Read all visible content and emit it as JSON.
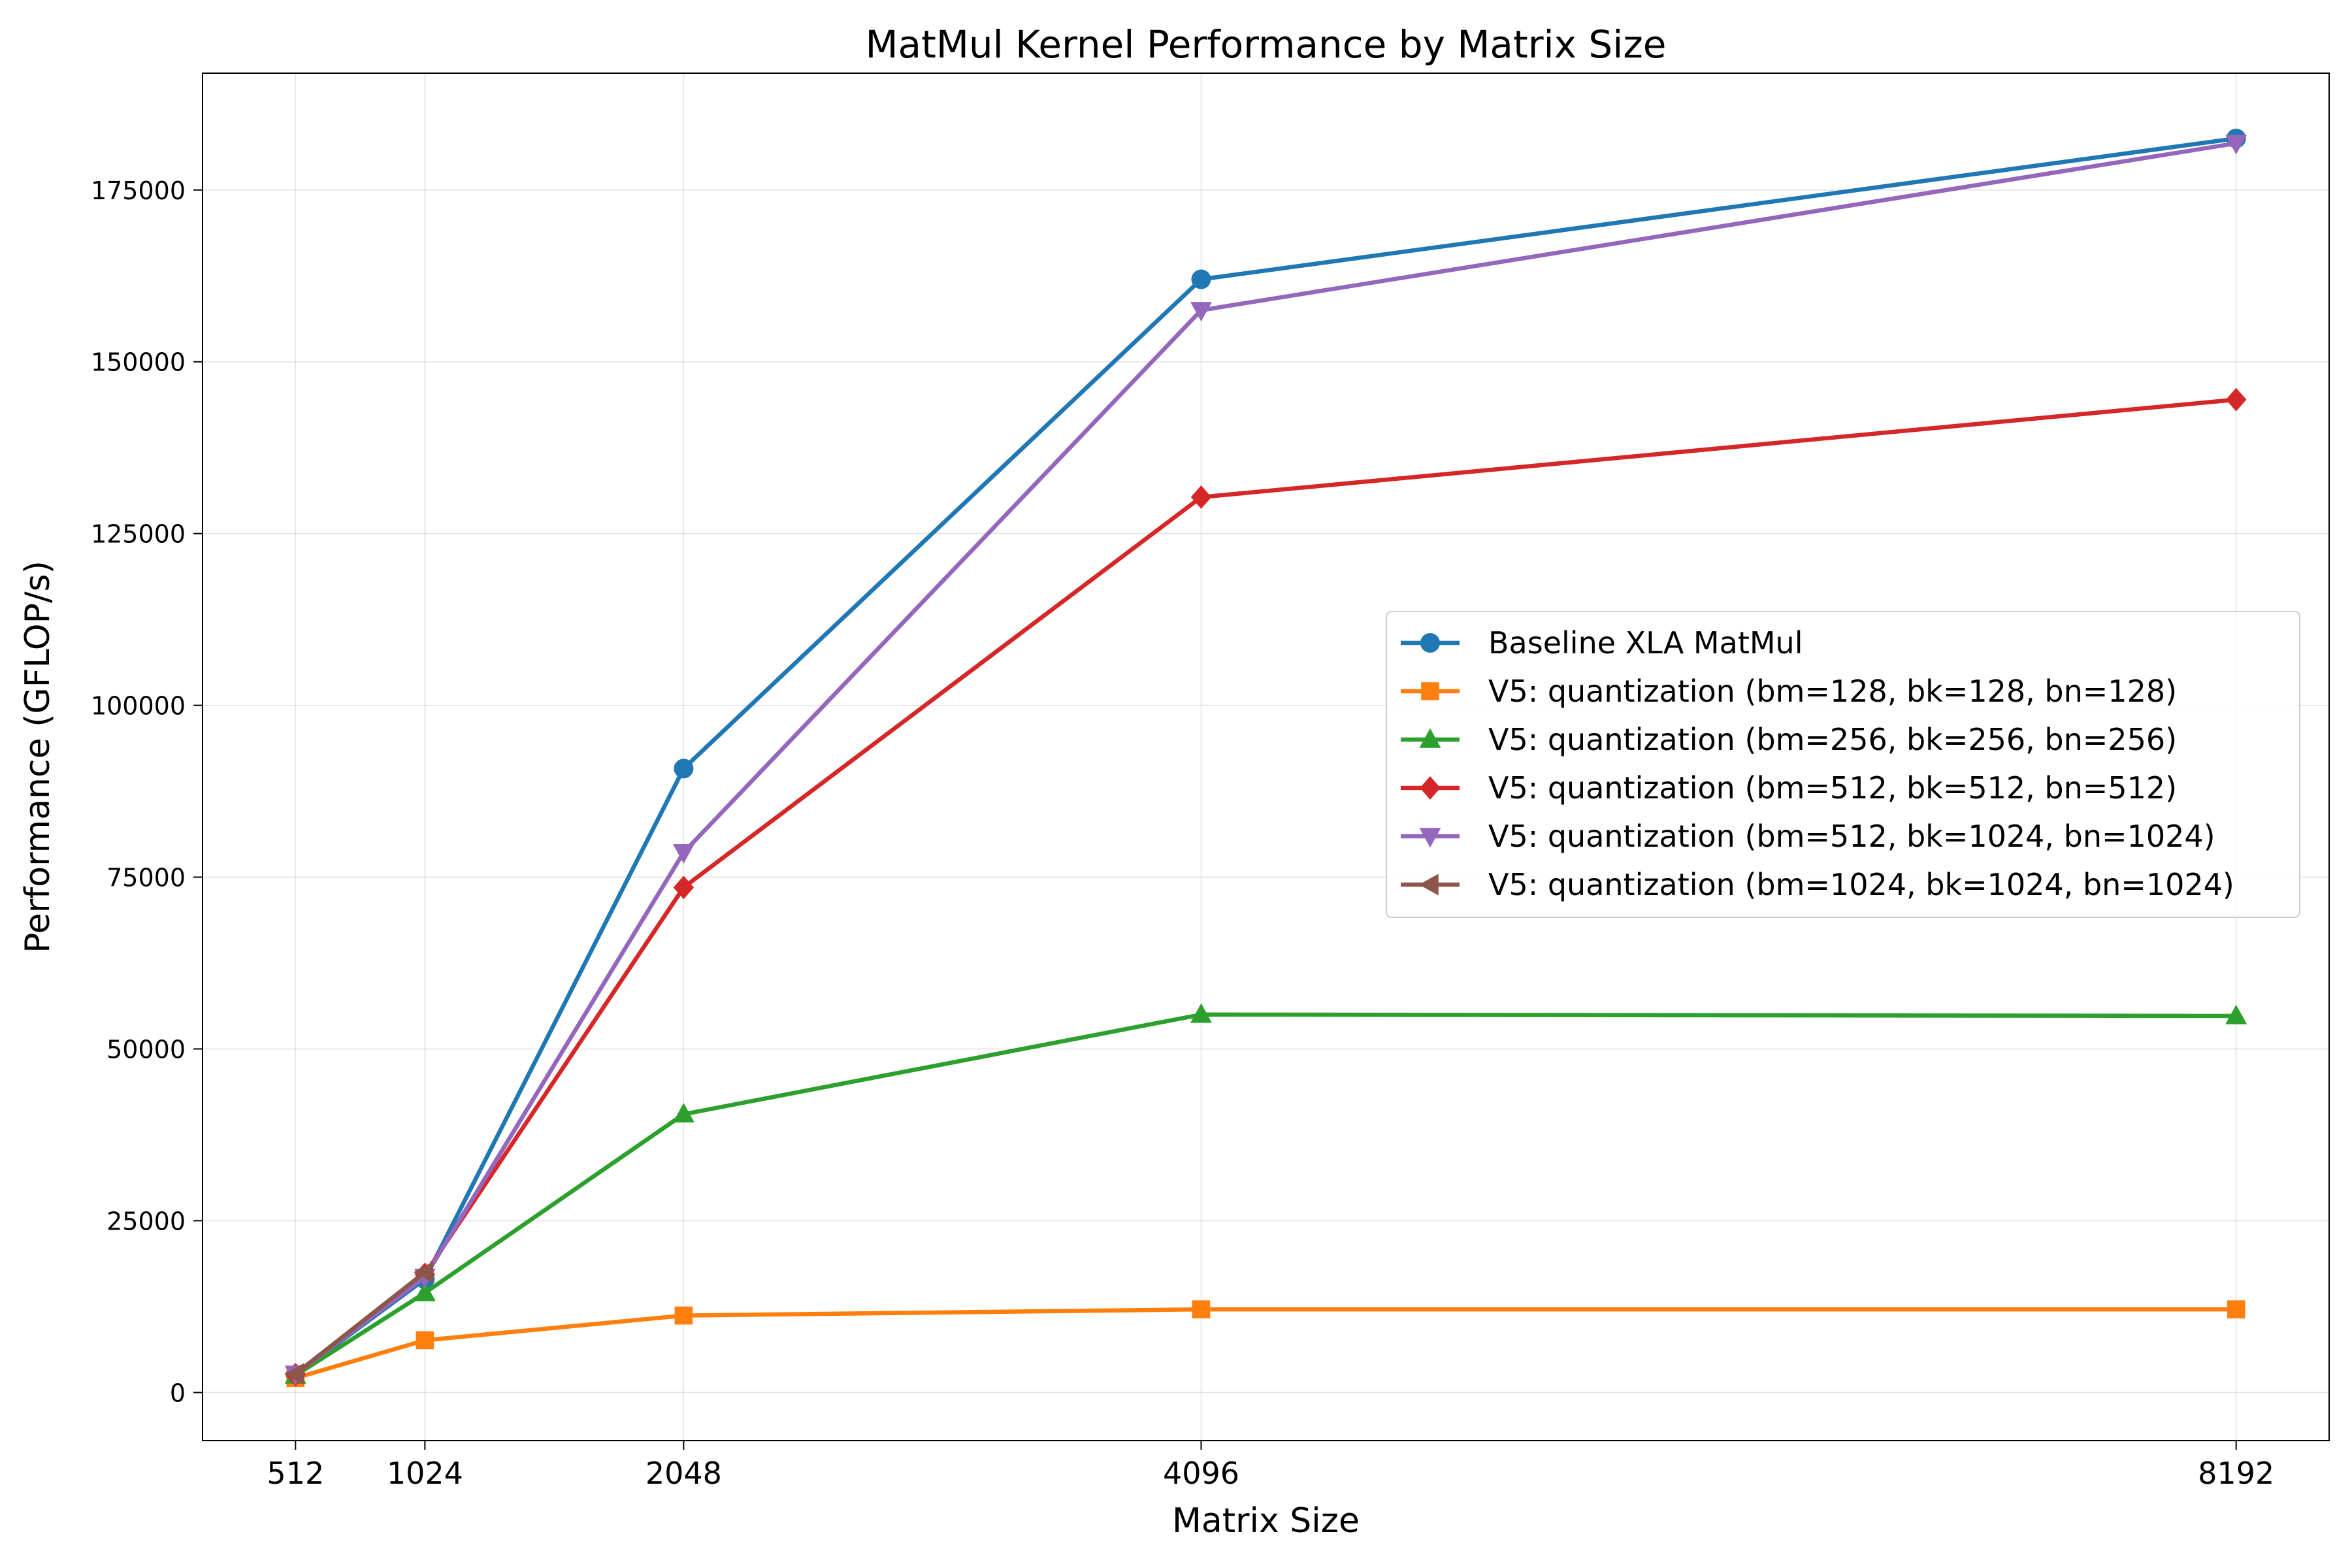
{
  "chart_data": {
    "type": "line",
    "title": "MatMul Kernel Performance by Matrix Size",
    "xlabel": "Matrix Size",
    "ylabel": "Performance (GFLOP/s)",
    "x": [
      512,
      1024,
      2048,
      4096,
      8192
    ],
    "x_tick_labels": [
      "512",
      "1024",
      "2048",
      "4096",
      "8192"
    ],
    "y_ticks": [
      0,
      25000,
      50000,
      75000,
      100000,
      125000,
      150000,
      175000
    ],
    "y_tick_labels": [
      "0",
      "25000",
      "50000",
      "75000",
      "100000",
      "125000",
      "150000",
      "175000"
    ],
    "xlim": [
      144,
      8560
    ],
    "ylim": [
      -7000,
      192000
    ],
    "grid": true,
    "legend_position": "center-right",
    "series": [
      {
        "name": "Baseline XLA MatMul",
        "color": "#1f77b4",
        "marker": "circle",
        "values": [
          2600,
          16500,
          90800,
          162000,
          182500
        ]
      },
      {
        "name": "V5: quantization (bm=128, bk=128, bn=128)",
        "color": "#ff7f0e",
        "marker": "square",
        "values": [
          2100,
          7600,
          11200,
          12100,
          12100
        ]
      },
      {
        "name": "V5: quantization (bm=256, bk=256, bn=256)",
        "color": "#2ca02c",
        "marker": "triangle-up",
        "values": [
          2500,
          14500,
          40500,
          55000,
          54800
        ]
      },
      {
        "name": "V5: quantization (bm=512, bk=512, bn=512)",
        "color": "#d62728",
        "marker": "diamond",
        "values": [
          2600,
          17200,
          73500,
          130300,
          144500
        ]
      },
      {
        "name": "V5: quantization (bm=512, bk=1024, bn=1024)",
        "color": "#9467bd",
        "marker": "triangle-down",
        "values": [
          2700,
          16800,
          78600,
          157500,
          181800
        ]
      },
      {
        "name": "V5: quantization (bm=1024, bk=1024, bn=1024)",
        "color": "#8c564b",
        "marker": "triangle-left",
        "values": [
          2700,
          17500,
          null,
          null,
          null
        ]
      }
    ]
  }
}
